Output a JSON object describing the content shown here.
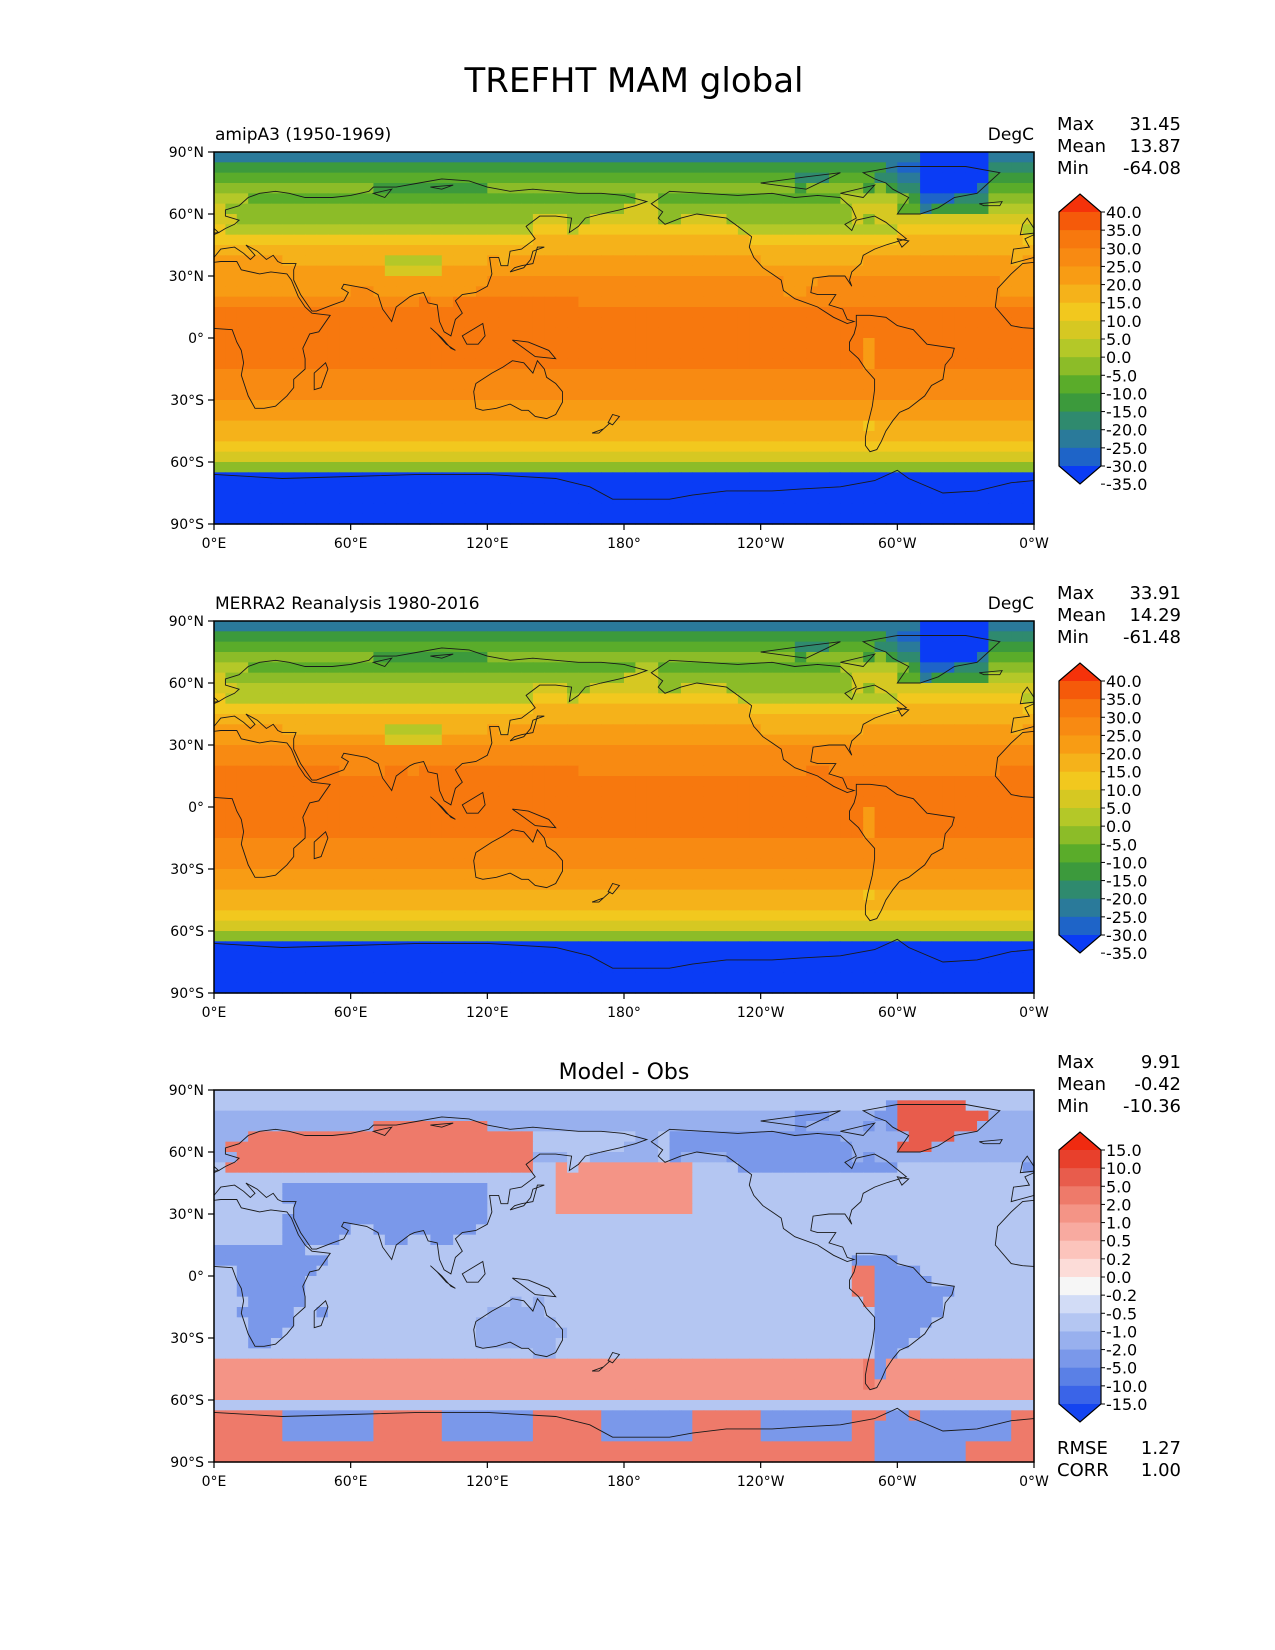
{
  "title": "TREFHT MAM global",
  "lat_ticks": [
    "90°N",
    "60°N",
    "30°N",
    "0°",
    "30°S",
    "60°S",
    "90°S"
  ],
  "lon_ticks": [
    "0°E",
    "60°E",
    "120°E",
    "180°",
    "120°W",
    "60°W",
    "0°W"
  ],
  "colors": {
    "temperature": [
      "#0a3cf5",
      "#1e64c8",
      "#2a7a9a",
      "#2f8a6e",
      "#3c9a3c",
      "#5aac2a",
      "#8cbc28",
      "#b4c828",
      "#d6c822",
      "#f2c81e",
      "#f5b21a",
      "#f89c14",
      "#f88a12",
      "#f7780e",
      "#f55a0a",
      "#f5320a"
    ],
    "difference": [
      "#1444f0",
      "#3a64e8",
      "#5a80e6",
      "#7a98ea",
      "#98b0ee",
      "#b4c6f2",
      "#d2dcf6",
      "#f6f6f6",
      "#fcdcd8",
      "#fcc4bc",
      "#f8aaa0",
      "#f49486",
      "#ee7a6a",
      "#e85c4c",
      "#e8402c",
      "#f02a10"
    ]
  },
  "panels": [
    {
      "id": "test",
      "left_title": "amipA3 (1950-1969)",
      "center_title": "",
      "right_title": "DegC",
      "stats": [
        {
          "label": "Max",
          "value": "31.45"
        },
        {
          "label": "Mean",
          "value": "13.87"
        },
        {
          "label": "Min",
          "value": "-64.08"
        }
      ],
      "extra_stats": [],
      "colorbar_labels": [
        "40.0",
        "35.0",
        "30.0",
        "25.0",
        "20.0",
        "15.0",
        "10.0",
        "5.0",
        "0.0",
        "-5.0",
        "-10.0",
        "-15.0",
        "-20.0",
        "-25.0",
        "-30.0",
        "-35.0"
      ]
    },
    {
      "id": "reference",
      "left_title": "MERRA2 Reanalysis 1980-2016",
      "center_title": "",
      "right_title": "DegC",
      "stats": [
        {
          "label": "Max",
          "value": "33.91"
        },
        {
          "label": "Mean",
          "value": "14.29"
        },
        {
          "label": "Min",
          "value": "-61.48"
        }
      ],
      "extra_stats": [],
      "colorbar_labels": [
        "40.0",
        "35.0",
        "30.0",
        "25.0",
        "20.0",
        "15.0",
        "10.0",
        "5.0",
        "0.0",
        "-5.0",
        "-10.0",
        "-15.0",
        "-20.0",
        "-25.0",
        "-30.0",
        "-35.0"
      ]
    },
    {
      "id": "difference",
      "left_title": "",
      "center_title": "Model - Obs",
      "right_title": "",
      "stats": [
        {
          "label": "Max",
          "value": "9.91"
        },
        {
          "label": "Mean",
          "value": "-0.42"
        },
        {
          "label": "Min",
          "value": "-10.36"
        }
      ],
      "extra_stats": [
        {
          "label": "RMSE",
          "value": "1.27"
        },
        {
          "label": "CORR",
          "value": "1.00"
        }
      ],
      "colorbar_labels": [
        "15.0",
        "10.0",
        "5.0",
        "2.0",
        "1.0",
        "0.5",
        "0.2",
        "0.0",
        "-0.2",
        "-0.5",
        "-1.0",
        "-2.0",
        "-5.0",
        "-10.0",
        "-15.0"
      ]
    }
  ]
}
